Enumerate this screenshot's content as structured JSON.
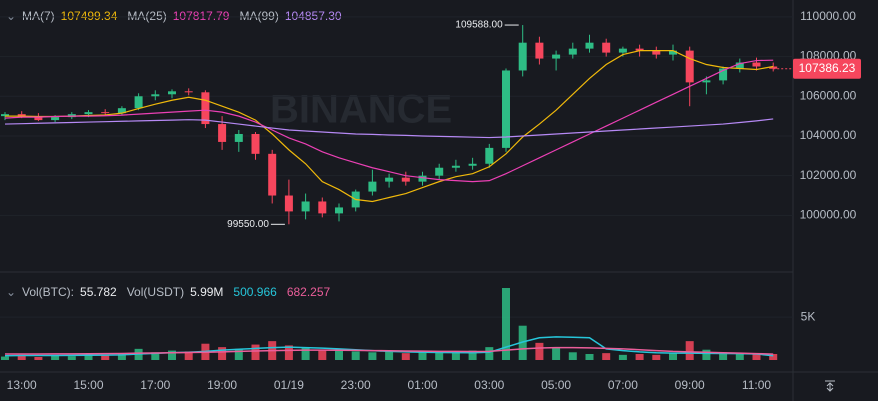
{
  "chart_data": {
    "type": "candlestick",
    "watermark": "BINANCE",
    "categories": [
      null,
      "13:00",
      null,
      null,
      null,
      "15:00",
      null,
      null,
      null,
      "17:00",
      null,
      null,
      null,
      "19:00",
      null,
      null,
      null,
      "01/19",
      null,
      null,
      null,
      "23:00",
      null,
      null,
      null,
      "01:00",
      null,
      null,
      null,
      "03:00",
      null,
      null,
      null,
      "05:00",
      null,
      null,
      null,
      "07:00",
      null,
      null,
      null,
      "09:00",
      null,
      null,
      null,
      "11:00",
      null
    ],
    "open": [
      105000,
      105100,
      104950,
      104800,
      104950,
      105100,
      105200,
      105150,
      105400,
      106000,
      106100,
      106250,
      106200,
      104600,
      103700,
      104100,
      103100,
      101000,
      100200,
      100700,
      100100,
      100400,
      101200,
      101700,
      101900,
      101700,
      102000,
      102400,
      102500,
      102600,
      103400,
      107300,
      108700,
      107900,
      108100,
      108400,
      108700,
      108200,
      108400,
      108300,
      108100,
      108300,
      106700,
      106800,
      107400,
      107700,
      107500
    ],
    "high": [
      105200,
      105250,
      105150,
      105050,
      105200,
      105300,
      105350,
      105500,
      106150,
      106300,
      106350,
      106400,
      106300,
      105000,
      104300,
      104200,
      103300,
      101800,
      101100,
      100900,
      100600,
      101300,
      102300,
      102100,
      102200,
      102200,
      102600,
      102800,
      102900,
      103600,
      107400,
      109588,
      109000,
      108300,
      108700,
      109100,
      108900,
      108500,
      108600,
      108500,
      108600,
      108500,
      107000,
      107500,
      107900,
      107950,
      107700
    ],
    "low": [
      104800,
      104900,
      104750,
      104700,
      104850,
      104950,
      105050,
      105050,
      105300,
      105800,
      105900,
      106050,
      104400,
      103300,
      103200,
      102800,
      100600,
      99550,
      99800,
      99900,
      99700,
      100200,
      101000,
      101400,
      101500,
      101500,
      101800,
      102200,
      102300,
      102400,
      103200,
      107000,
      107600,
      107300,
      107900,
      108200,
      108000,
      108000,
      108000,
      107900,
      107800,
      105500,
      106100,
      106600,
      107200,
      107300,
      107250
    ],
    "close": [
      105100,
      104950,
      104800,
      104950,
      105100,
      105200,
      105150,
      105400,
      106000,
      106100,
      106250,
      106200,
      104600,
      103700,
      104100,
      103100,
      101000,
      100200,
      100700,
      100100,
      100400,
      101200,
      101700,
      101900,
      101700,
      102000,
      102400,
      102500,
      102600,
      103400,
      107300,
      108700,
      107900,
      108100,
      108400,
      108700,
      108200,
      108400,
      108300,
      108100,
      108300,
      106700,
      106800,
      107400,
      107700,
      107500,
      107386.23
    ],
    "up_color": "#2ebd85",
    "down_color": "#f6465d",
    "ylim": [
      97500,
      110850
    ],
    "yticks": [
      {
        "value": 100000,
        "label": "100000.00"
      },
      {
        "value": 102000,
        "label": "102000.00"
      },
      {
        "value": 104000,
        "label": "104000.00"
      },
      {
        "value": 106000,
        "label": "106000.00"
      },
      {
        "value": 108000,
        "label": "108000.00"
      },
      {
        "value": 110000,
        "label": "110000.00"
      }
    ],
    "last_price_label": "107386.23",
    "annotations": [
      {
        "index": 31,
        "value": 109588,
        "label": "109588.00"
      },
      {
        "index": 17,
        "value": 99550,
        "label": "99550.00"
      }
    ],
    "ma_series": [
      {
        "name": "MA(7)",
        "current": "107499.34",
        "color": "#f0b90b",
        "values": [
          105000,
          105000,
          104980,
          104980,
          105000,
          105030,
          105060,
          105150,
          105380,
          105600,
          105800,
          105950,
          105800,
          105500,
          105200,
          104800,
          104100,
          103300,
          102600,
          101700,
          101300,
          100800,
          100700,
          100900,
          101100,
          101400,
          101700,
          101950,
          102100,
          102450,
          103100,
          103950,
          104600,
          105300,
          106100,
          106900,
          107600,
          108100,
          108300,
          108300,
          108300,
          107900,
          107600,
          107450,
          107400,
          107350,
          107499.34
        ]
      },
      {
        "name": "MA(25)",
        "current": "107817.79",
        "color": "#eb40b5",
        "values": [
          104900,
          104950,
          104950,
          104980,
          105000,
          105000,
          105020,
          105050,
          105100,
          105150,
          105200,
          105250,
          105300,
          105200,
          105000,
          104700,
          104300,
          103900,
          103600,
          103200,
          102900,
          102650,
          102400,
          102200,
          102000,
          101900,
          101800,
          101750,
          101700,
          101750,
          102100,
          102500,
          102900,
          103300,
          103700,
          104100,
          104500,
          104900,
          105300,
          105700,
          106100,
          106500,
          106900,
          107300,
          107650,
          107800,
          107817.79
        ]
      },
      {
        "name": "MA(99)",
        "current": "104857.30",
        "color": "#b689f5",
        "values": [
          104600,
          104620,
          104640,
          104660,
          104680,
          104700,
          104720,
          104740,
          104760,
          104780,
          104800,
          104820,
          104800,
          104700,
          104600,
          104500,
          104400,
          104300,
          104250,
          104200,
          104150,
          104100,
          104080,
          104050,
          104030,
          104000,
          103980,
          103960,
          103940,
          103920,
          103950,
          104000,
          104050,
          104100,
          104150,
          104200,
          104250,
          104300,
          104350,
          104400,
          104450,
          104500,
          104550,
          104600,
          104680,
          104760,
          104857.3
        ]
      }
    ],
    "volume": {
      "label": "Vol(BTC):",
      "value": "55.782",
      "usdt_label": "Vol(USDT)",
      "usdt_value": "5.99M",
      "values": [
        400,
        600,
        350,
        500,
        450,
        700,
        600,
        800,
        1300,
        900,
        1100,
        1000,
        1900,
        1500,
        1300,
        1800,
        2200,
        1700,
        1400,
        1100,
        1200,
        1000,
        900,
        1100,
        800,
        900,
        1000,
        900,
        1100,
        1500,
        8400,
        4000,
        2000,
        1500,
        900,
        700,
        800,
        600,
        700,
        600,
        800,
        2200,
        1200,
        900,
        800,
        700,
        700
      ],
      "ylim": [
        0,
        9800
      ],
      "yticks": [
        {
          "value": 5000,
          "label": "5K"
        }
      ],
      "ma_series": [
        {
          "name": "500.966",
          "color": "#26c6da",
          "values": [
            500,
            520,
            520,
            530,
            540,
            550,
            570,
            600,
            700,
            780,
            860,
            900,
            1000,
            1150,
            1250,
            1350,
            1450,
            1500,
            1450,
            1380,
            1300,
            1200,
            1100,
            1000,
            950,
            900,
            880,
            860,
            850,
            900,
            1500,
            2100,
            2600,
            2700,
            2650,
            2600,
            1300,
            1100,
            950,
            850,
            800,
            800,
            780,
            760,
            740,
            700,
            500.966
          ]
        },
        {
          "name": "682.257",
          "color": "#eb5e9a",
          "values": [
            700,
            700,
            700,
            710,
            720,
            730,
            740,
            760,
            800,
            820,
            850,
            870,
            900,
            950,
            1000,
            1050,
            1100,
            1130,
            1150,
            1150,
            1140,
            1130,
            1100,
            1080,
            1050,
            1030,
            1010,
            1000,
            990,
            1000,
            1150,
            1300,
            1400,
            1450,
            1450,
            1420,
            1350,
            1300,
            1200,
            1100,
            1000,
            950,
            900,
            850,
            800,
            750,
            682.257
          ]
        }
      ]
    }
  }
}
